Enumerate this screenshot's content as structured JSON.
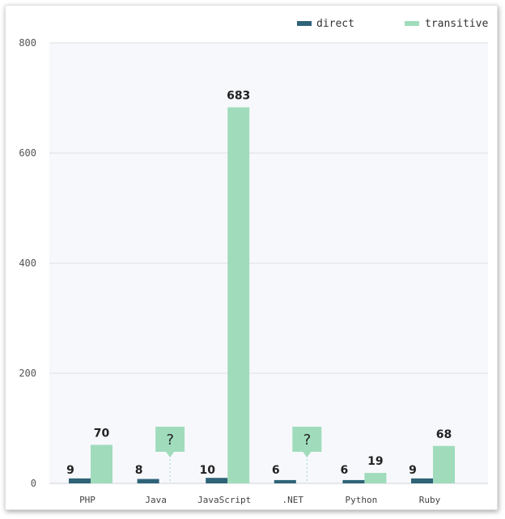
{
  "chart_data": {
    "type": "bar",
    "title": "",
    "xlabel": "",
    "ylabel": "",
    "ylim": [
      0,
      800
    ],
    "yticks": [
      0,
      200,
      400,
      600,
      800
    ],
    "grid": true,
    "legend_position": "top-right",
    "categories": [
      "PHP",
      "Java",
      "JavaScript",
      ".NET",
      "Python",
      "Ruby"
    ],
    "series": [
      {
        "name": "direct",
        "color": "#2f6378",
        "values": [
          9,
          8,
          10,
          6,
          6,
          9
        ]
      },
      {
        "name": "transitive",
        "color": "#a0dcbc",
        "values": [
          70,
          null,
          683,
          null,
          19,
          68
        ]
      }
    ],
    "unknown_marker": "?"
  }
}
